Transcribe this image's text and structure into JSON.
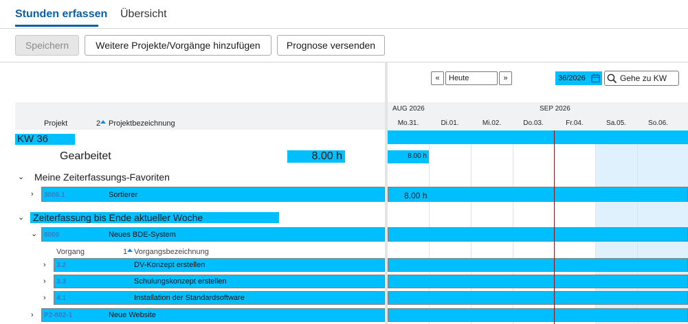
{
  "tabs": [
    {
      "label": "Stunden erfassen"
    },
    {
      "label": "Übersicht"
    }
  ],
  "toolbar": {
    "save": "Speichern",
    "add_projects": "Weitere Projekte/Vorgänge hinzufügen",
    "send_forecast": "Prognose versenden"
  },
  "nav": {
    "prev": "«",
    "today": "Heute",
    "next": "»",
    "week": "36/2026",
    "goto": "Gehe zu KW"
  },
  "columns": {
    "project": "Projekt",
    "sort_index": "2",
    "project_name": "Projektbezeichnung",
    "task": "Vorgang",
    "task_sort_index": "1",
    "task_name": "Vorgangsbezeichnung"
  },
  "calendar": {
    "months": [
      "AUG 2026",
      "SEP 2026"
    ],
    "days": [
      "Mo.31.",
      "Di.01.",
      "Mi.02.",
      "Do.03.",
      "Fr.04.",
      "Sa.05.",
      "So.06."
    ]
  },
  "week": {
    "label": "KW 36",
    "worked_label": "Gearbeitet",
    "worked_total": "8.00 h",
    "worked_mon": "8.00 h"
  },
  "favorites": {
    "label": "Meine Zeiterfassungs-Favoriten",
    "items": [
      {
        "code": "3000.1",
        "name": "Sortierer",
        "mon": "8.00 h"
      }
    ]
  },
  "until_week": {
    "label": "Zeiterfassung bis Ende aktueller Woche"
  },
  "projects": [
    {
      "code": "8000",
      "name": "Neues BDE-System",
      "tasks": [
        {
          "code": "3.2",
          "name": "DV-Konzept erstellen"
        },
        {
          "code": "3.3",
          "name": "Schulungskonzept erstellen"
        },
        {
          "code": "4.1",
          "name": "Installation der Standardsoftware"
        }
      ]
    },
    {
      "code": "P2-882-1",
      "name": "Neue Website"
    }
  ],
  "icons": {
    "calendar": "calendar-icon",
    "search": "search-icon",
    "chevron_right": "chevron-right-icon",
    "chevron_down": "chevron-down-icon",
    "sort_up": "sort-up-icon"
  }
}
